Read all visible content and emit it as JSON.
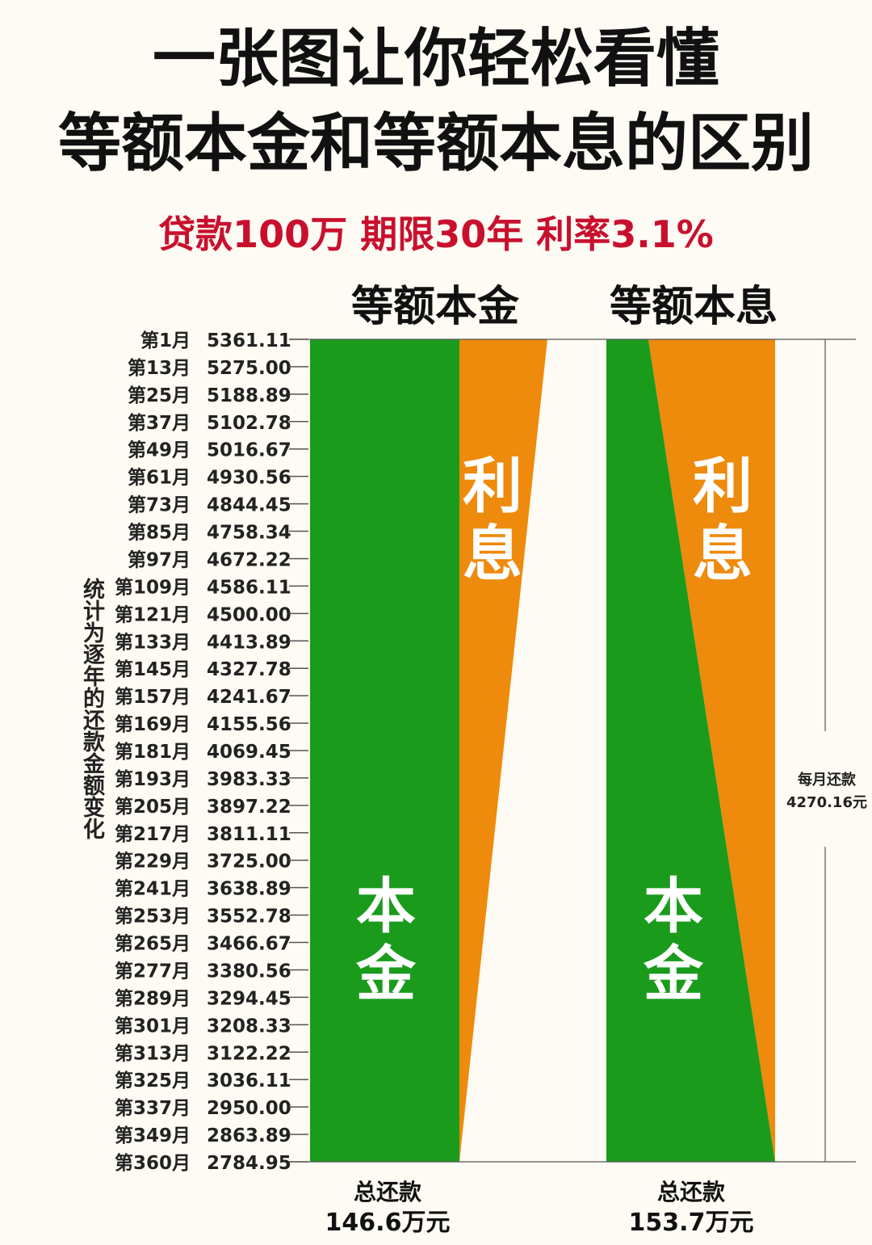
{
  "header": {
    "title_line1": "一张图让你轻松看懂",
    "title_line2": "等额本金和等额本息的区别",
    "subtitle": "贷款100万 期限30年 利率3.1%"
  },
  "chart_data": {
    "type": "area",
    "y_axis_label": "统计为逐年的还款金额变化",
    "rows": [
      {
        "month": "第1月",
        "payment": "5361.11"
      },
      {
        "month": "第13月",
        "payment": "5275.00"
      },
      {
        "month": "第25月",
        "payment": "5188.89"
      },
      {
        "month": "第37月",
        "payment": "5102.78"
      },
      {
        "month": "第49月",
        "payment": "5016.67"
      },
      {
        "month": "第61月",
        "payment": "4930.56"
      },
      {
        "month": "第73月",
        "payment": "4844.45"
      },
      {
        "month": "第85月",
        "payment": "4758.34"
      },
      {
        "month": "第97月",
        "payment": "4672.22"
      },
      {
        "month": "第109月",
        "payment": "4586.11"
      },
      {
        "month": "第121月",
        "payment": "4500.00"
      },
      {
        "month": "第133月",
        "payment": "4413.89"
      },
      {
        "month": "第145月",
        "payment": "4327.78"
      },
      {
        "month": "第157月",
        "payment": "4241.67"
      },
      {
        "month": "第169月",
        "payment": "4155.56"
      },
      {
        "month": "第181月",
        "payment": "4069.45"
      },
      {
        "month": "第193月",
        "payment": "3983.33"
      },
      {
        "month": "第205月",
        "payment": "3897.22"
      },
      {
        "month": "第217月",
        "payment": "3811.11"
      },
      {
        "month": "第229月",
        "payment": "3725.00"
      },
      {
        "month": "第241月",
        "payment": "3638.89"
      },
      {
        "month": "第253月",
        "payment": "3552.78"
      },
      {
        "month": "第265月",
        "payment": "3466.67"
      },
      {
        "month": "第277月",
        "payment": "3380.56"
      },
      {
        "month": "第289月",
        "payment": "3294.45"
      },
      {
        "month": "第301月",
        "payment": "3208.33"
      },
      {
        "month": "第313月",
        "payment": "3122.22"
      },
      {
        "month": "第325月",
        "payment": "3036.11"
      },
      {
        "month": "第337月",
        "payment": "2950.00"
      },
      {
        "month": "第349月",
        "payment": "2863.89"
      },
      {
        "month": "第360月",
        "payment": "2784.95"
      }
    ],
    "panels": [
      {
        "name": "等额本金",
        "principal_label": "本金",
        "interest_label": "利息",
        "total_label": "总还款",
        "total_value": "146.6万元"
      },
      {
        "name": "等额本息",
        "principal_label": "本金",
        "interest_label": "利息",
        "total_label": "总还款",
        "total_value": "153.7万元",
        "monthly_label": "每月还款",
        "monthly_value": "4270.16元"
      }
    ],
    "colors": {
      "principal": "#1a9b1c",
      "interest": "#ee8a0c",
      "background": "#fdfbf3"
    }
  }
}
